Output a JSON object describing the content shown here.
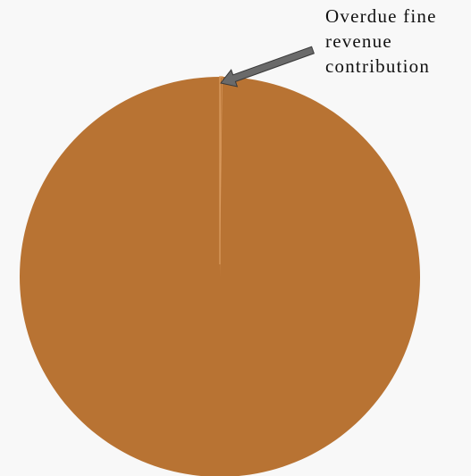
{
  "chart_data": {
    "type": "pie",
    "slices": [
      {
        "label": "Overdue fine revenue contribution",
        "value": 0.2
      },
      {
        "label": "",
        "value": 99.8
      }
    ],
    "colors": {
      "main": "#b87333",
      "slice_edge": "#d99a5e",
      "arrow_fill": "#6a6a6a",
      "arrow_stroke": "#3a3a3a"
    },
    "annotation": "Overdue fine revenue contribution"
  }
}
